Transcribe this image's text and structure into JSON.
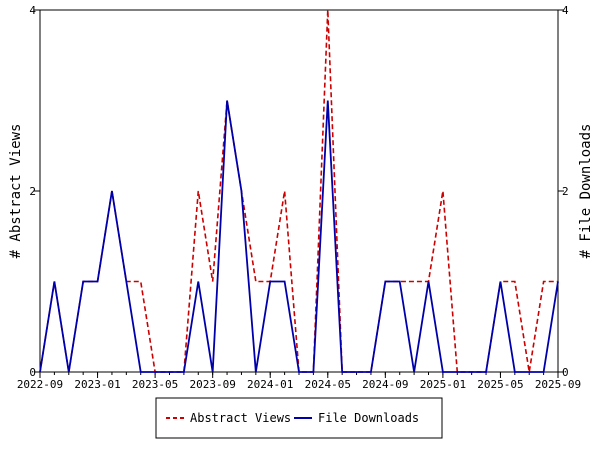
{
  "chart_data": {
    "type": "line",
    "x": [
      "2022-09",
      "2022-10",
      "2022-11",
      "2022-12",
      "2023-01",
      "2023-02",
      "2023-03",
      "2023-04",
      "2023-05",
      "2023-06",
      "2023-07",
      "2023-08",
      "2023-09",
      "2023-10",
      "2023-11",
      "2023-12",
      "2024-01",
      "2024-02",
      "2024-03",
      "2024-04",
      "2024-05",
      "2024-06",
      "2024-07",
      "2024-08",
      "2024-09",
      "2024-10",
      "2024-11",
      "2024-12",
      "2025-01",
      "2025-02",
      "2025-03",
      "2025-04",
      "2025-05",
      "2025-06",
      "2025-07",
      "2025-08",
      "2025-09"
    ],
    "x_ticks": [
      "2022-09",
      "2023-01",
      "2023-05",
      "2023-09",
      "2024-01",
      "2024-05",
      "2024-09",
      "2025-01",
      "2025-05",
      "2025-09"
    ],
    "series": [
      {
        "name": "Abstract Views",
        "axis": "left",
        "color": "#cc0000",
        "style": "dashed",
        "values": [
          0,
          1,
          0,
          1,
          1,
          2,
          1,
          1,
          0,
          0,
          0,
          2,
          1,
          3,
          2,
          1,
          1,
          2,
          0,
          0,
          4,
          0,
          0,
          0,
          1,
          1,
          1,
          1,
          2,
          0,
          0,
          0,
          1,
          1,
          0,
          1,
          1
        ]
      },
      {
        "name": "File Downloads",
        "axis": "right",
        "color": "#0000aa",
        "style": "solid",
        "values": [
          0,
          1,
          0,
          1,
          1,
          2,
          1,
          0,
          0,
          0,
          0,
          1,
          0,
          3,
          2,
          0,
          1,
          1,
          0,
          0,
          3,
          0,
          0,
          0,
          1,
          1,
          0,
          1,
          0,
          0,
          0,
          0,
          1,
          0,
          0,
          0,
          1
        ]
      }
    ],
    "ylabel_left": "# Abstract Views",
    "ylabel_right": "# File Downloads",
    "ylim": [
      0,
      4
    ],
    "y_ticks": [
      0,
      2,
      4
    ],
    "grid": false,
    "legend_position": "bottom"
  }
}
